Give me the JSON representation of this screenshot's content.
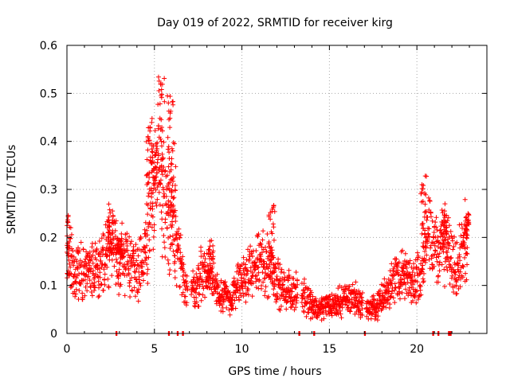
{
  "chart_data": {
    "type": "scatter",
    "title": "Day 019 of 2022, SRMTID for receiver kirg",
    "xlabel": "GPS time / hours",
    "ylabel": "SRMTID / TECUs",
    "xlim": [
      0,
      24
    ],
    "ylim": [
      0,
      0.6
    ],
    "xticks": [
      0,
      5,
      10,
      15,
      20
    ],
    "yticks": [
      0,
      0.1,
      0.2,
      0.3,
      0.4,
      0.5,
      0.6
    ],
    "xtick_labels": [
      "0",
      "5",
      "10",
      "15",
      "20"
    ],
    "ytick_labels": [
      "0",
      "0.1",
      "0.2",
      "0.3",
      "0.4",
      "0.5",
      "0.6"
    ],
    "grid": true,
    "marker": "+",
    "color": "#ff0000",
    "trend": [
      [
        0.0,
        0.17
      ],
      [
        0.5,
        0.13
      ],
      [
        1.0,
        0.12
      ],
      [
        1.5,
        0.14
      ],
      [
        2.0,
        0.15
      ],
      [
        2.5,
        0.18
      ],
      [
        3.0,
        0.16
      ],
      [
        3.5,
        0.15
      ],
      [
        4.0,
        0.13
      ],
      [
        4.5,
        0.17
      ],
      [
        4.8,
        0.28
      ],
      [
        5.0,
        0.3
      ],
      [
        5.3,
        0.35
      ],
      [
        5.6,
        0.27
      ],
      [
        6.0,
        0.23
      ],
      [
        6.3,
        0.16
      ],
      [
        6.8,
        0.1
      ],
      [
        7.3,
        0.09
      ],
      [
        7.8,
        0.13
      ],
      [
        8.3,
        0.11
      ],
      [
        8.8,
        0.08
      ],
      [
        9.3,
        0.07
      ],
      [
        9.8,
        0.1
      ],
      [
        10.3,
        0.12
      ],
      [
        10.8,
        0.14
      ],
      [
        11.3,
        0.15
      ],
      [
        11.8,
        0.13
      ],
      [
        12.3,
        0.09
      ],
      [
        12.8,
        0.09
      ],
      [
        13.3,
        0.08
      ],
      [
        13.8,
        0.07
      ],
      [
        14.3,
        0.05
      ],
      [
        14.8,
        0.06
      ],
      [
        15.3,
        0.06
      ],
      [
        15.8,
        0.07
      ],
      [
        16.3,
        0.08
      ],
      [
        16.8,
        0.06
      ],
      [
        17.3,
        0.05
      ],
      [
        17.8,
        0.06
      ],
      [
        18.3,
        0.09
      ],
      [
        18.8,
        0.12
      ],
      [
        19.3,
        0.12
      ],
      [
        19.8,
        0.1
      ],
      [
        20.3,
        0.14
      ],
      [
        20.6,
        0.2
      ],
      [
        21.0,
        0.18
      ],
      [
        21.5,
        0.19
      ],
      [
        22.0,
        0.15
      ],
      [
        22.5,
        0.16
      ],
      [
        22.9,
        0.2
      ]
    ],
    "spikes": [
      [
        0.05,
        0.25
      ],
      [
        2.5,
        0.27
      ],
      [
        3.0,
        0.2
      ],
      [
        4.7,
        0.45
      ],
      [
        5.0,
        0.4
      ],
      [
        5.4,
        0.54
      ],
      [
        5.9,
        0.5
      ],
      [
        6.1,
        0.4
      ],
      [
        8.2,
        0.2
      ],
      [
        11.7,
        0.27
      ],
      [
        20.4,
        0.34
      ],
      [
        21.6,
        0.26
      ],
      [
        22.8,
        0.25
      ]
    ],
    "gaps": [
      [
        6.9,
        7.1
      ],
      [
        13.2,
        13.4
      ],
      [
        16.9,
        17.1
      ]
    ],
    "baseline_marks": [
      2.8,
      5.8,
      6.3,
      6.6,
      13.25,
      14.1,
      17.0,
      20.9,
      21.2,
      21.8,
      21.9
    ]
  }
}
